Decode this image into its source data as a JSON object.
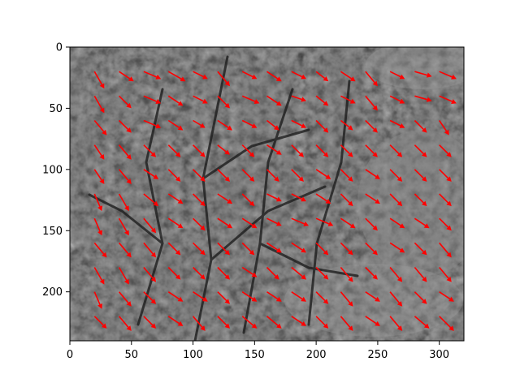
{
  "chart_data": {
    "type": "quiver",
    "title": "",
    "xlabel": "",
    "ylabel": "",
    "xlim": [
      0,
      320
    ],
    "ylim": [
      240,
      0
    ],
    "y_axis_inverted": true,
    "grid": false,
    "background": "grayscale photograph of a leafy shrub",
    "arrow_color": "#ff0000",
    "x_ticks": [
      0,
      50,
      100,
      150,
      200,
      250,
      300
    ],
    "y_ticks": [
      0,
      50,
      100,
      150,
      200
    ],
    "grid_spacing": 20,
    "x_start": 20,
    "y_start": 20,
    "rows": [
      {
        "y": 20,
        "vectors": [
          [
            8,
            14
          ],
          [
            12,
            8
          ],
          [
            14,
            6
          ],
          [
            14,
            8
          ],
          [
            12,
            6
          ],
          [
            10,
            12
          ],
          [
            12,
            6
          ],
          [
            12,
            8
          ],
          [
            12,
            6
          ],
          [
            10,
            8
          ],
          [
            12,
            8
          ],
          [
            10,
            12
          ],
          [
            12,
            6
          ],
          [
            14,
            4
          ],
          [
            14,
            6
          ],
          [
            14,
            6
          ],
          [
            14,
            2
          ],
          [
            14,
            4
          ]
        ]
      },
      {
        "y": 40,
        "vectors": [
          [
            8,
            14
          ],
          [
            10,
            10
          ],
          [
            14,
            6
          ],
          [
            12,
            8
          ],
          [
            12,
            6
          ],
          [
            10,
            10
          ],
          [
            14,
            6
          ],
          [
            12,
            8
          ],
          [
            12,
            4
          ],
          [
            10,
            8
          ],
          [
            12,
            6
          ],
          [
            10,
            12
          ],
          [
            12,
            6
          ],
          [
            14,
            4
          ],
          [
            14,
            6
          ],
          [
            14,
            4
          ],
          [
            12,
            8
          ],
          [
            12,
            8
          ]
        ]
      },
      {
        "y": 60,
        "vectors": [
          [
            10,
            12
          ],
          [
            10,
            10
          ],
          [
            14,
            6
          ],
          [
            12,
            8
          ],
          [
            10,
            6
          ],
          [
            12,
            8
          ],
          [
            12,
            6
          ],
          [
            10,
            8
          ],
          [
            12,
            6
          ],
          [
            10,
            10
          ],
          [
            10,
            8
          ],
          [
            10,
            10
          ],
          [
            12,
            6
          ],
          [
            10,
            10
          ],
          [
            8,
            12
          ],
          [
            10,
            10
          ],
          [
            10,
            10
          ],
          [
            4,
            14
          ]
        ]
      },
      {
        "y": 80,
        "vectors": [
          [
            8,
            12
          ],
          [
            10,
            12
          ],
          [
            10,
            10
          ],
          [
            10,
            10
          ],
          [
            10,
            10
          ],
          [
            10,
            8
          ],
          [
            10,
            10
          ],
          [
            12,
            8
          ],
          [
            10,
            10
          ],
          [
            10,
            10
          ],
          [
            10,
            10
          ],
          [
            10,
            10
          ],
          [
            10,
            10
          ],
          [
            10,
            10
          ],
          [
            10,
            10
          ],
          [
            10,
            10
          ],
          [
            10,
            10
          ],
          [
            10,
            10
          ]
        ]
      },
      {
        "y": 100,
        "vectors": [
          [
            8,
            12
          ],
          [
            10,
            12
          ],
          [
            12,
            8
          ],
          [
            10,
            10
          ],
          [
            10,
            10
          ],
          [
            10,
            10
          ],
          [
            10,
            10
          ],
          [
            10,
            10
          ],
          [
            10,
            10
          ],
          [
            12,
            8
          ],
          [
            10,
            10
          ],
          [
            12,
            8
          ],
          [
            10,
            10
          ],
          [
            10,
            10
          ],
          [
            10,
            10
          ],
          [
            10,
            10
          ],
          [
            10,
            10
          ],
          [
            10,
            10
          ]
        ]
      },
      {
        "y": 120,
        "vectors": [
          [
            6,
            14
          ],
          [
            8,
            14
          ],
          [
            12,
            10
          ],
          [
            12,
            8
          ],
          [
            10,
            10
          ],
          [
            12,
            8
          ],
          [
            10,
            10
          ],
          [
            12,
            6
          ],
          [
            12,
            6
          ],
          [
            12,
            8
          ],
          [
            10,
            10
          ],
          [
            12,
            8
          ],
          [
            10,
            10
          ],
          [
            10,
            10
          ],
          [
            10,
            10
          ],
          [
            10,
            10
          ],
          [
            10,
            10
          ],
          [
            10,
            10
          ]
        ]
      },
      {
        "y": 140,
        "vectors": [
          [
            6,
            14
          ],
          [
            8,
            14
          ],
          [
            10,
            12
          ],
          [
            12,
            8
          ],
          [
            10,
            10
          ],
          [
            12,
            8
          ],
          [
            12,
            8
          ],
          [
            12,
            6
          ],
          [
            14,
            6
          ],
          [
            14,
            6
          ],
          [
            12,
            8
          ],
          [
            10,
            10
          ],
          [
            12,
            8
          ],
          [
            12,
            8
          ],
          [
            10,
            10
          ],
          [
            12,
            8
          ],
          [
            12,
            8
          ],
          [
            12,
            8
          ]
        ]
      },
      {
        "y": 160,
        "vectors": [
          [
            10,
            12
          ],
          [
            10,
            12
          ],
          [
            10,
            12
          ],
          [
            10,
            10
          ],
          [
            10,
            10
          ],
          [
            10,
            10
          ],
          [
            10,
            10
          ],
          [
            12,
            8
          ],
          [
            12,
            8
          ],
          [
            10,
            10
          ],
          [
            10,
            10
          ],
          [
            10,
            10
          ],
          [
            12,
            8
          ],
          [
            10,
            10
          ],
          [
            10,
            12
          ],
          [
            10,
            12
          ],
          [
            10,
            10
          ],
          [
            10,
            10
          ]
        ]
      },
      {
        "y": 180,
        "vectors": [
          [
            8,
            14
          ],
          [
            8,
            14
          ],
          [
            10,
            12
          ],
          [
            10,
            10
          ],
          [
            10,
            10
          ],
          [
            10,
            10
          ],
          [
            12,
            8
          ],
          [
            10,
            10
          ],
          [
            12,
            10
          ],
          [
            10,
            10
          ],
          [
            10,
            12
          ],
          [
            10,
            10
          ],
          [
            10,
            12
          ],
          [
            10,
            12
          ],
          [
            10,
            12
          ],
          [
            10,
            12
          ],
          [
            10,
            12
          ],
          [
            12,
            8
          ]
        ]
      },
      {
        "y": 200,
        "vectors": [
          [
            6,
            14
          ],
          [
            10,
            12
          ],
          [
            10,
            10
          ],
          [
            12,
            8
          ],
          [
            12,
            8
          ],
          [
            10,
            10
          ],
          [
            12,
            8
          ],
          [
            12,
            8
          ],
          [
            12,
            8
          ],
          [
            10,
            10
          ],
          [
            10,
            12
          ],
          [
            12,
            8
          ],
          [
            10,
            12
          ],
          [
            10,
            10
          ],
          [
            12,
            8
          ],
          [
            12,
            10
          ],
          [
            12,
            10
          ],
          [
            12,
            8
          ]
        ]
      },
      {
        "y": 220,
        "vectors": [
          [
            10,
            10
          ],
          [
            10,
            12
          ],
          [
            10,
            10
          ],
          [
            12,
            8
          ],
          [
            10,
            12
          ],
          [
            10,
            10
          ],
          [
            12,
            10
          ],
          [
            12,
            10
          ],
          [
            12,
            8
          ],
          [
            10,
            10
          ],
          [
            10,
            12
          ],
          [
            12,
            8
          ],
          [
            10,
            12
          ],
          [
            12,
            10
          ],
          [
            12,
            12
          ],
          [
            12,
            10
          ],
          [
            12,
            12
          ],
          [
            14,
            6
          ]
        ]
      }
    ]
  }
}
